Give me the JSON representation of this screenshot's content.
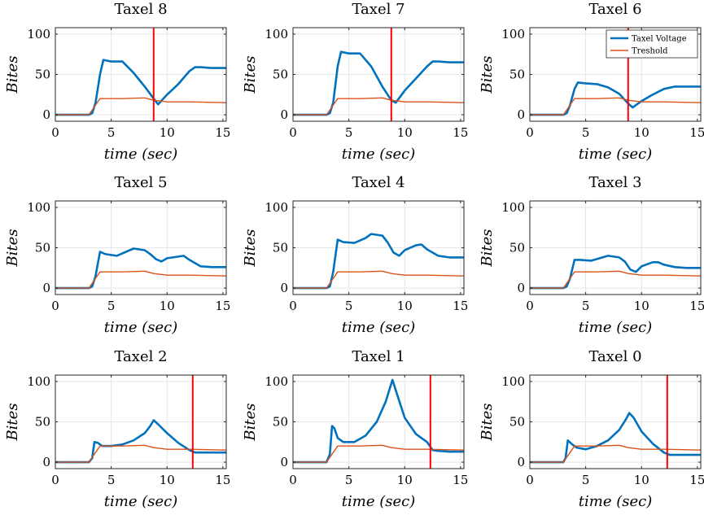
{
  "colors": {
    "voltage": "#0072bd",
    "threshold": "#d95319",
    "event": "#ff0000",
    "grid": "#e6e6e6",
    "axis": "#262626"
  },
  "chart_data": [
    {
      "type": "line",
      "title": "Taxel 8",
      "xlabel": "time (sec)",
      "ylabel": "Bites",
      "xlim": [
        0,
        15.3
      ],
      "ylim": [
        -8,
        108
      ],
      "xticks": [
        0,
        5,
        10,
        15
      ],
      "yticks": [
        0,
        50,
        100
      ],
      "grid": true,
      "event_x": 8.8,
      "legend": null,
      "series": [
        {
          "name": "Taxel Voltage",
          "x": [
            0,
            3.0,
            3.3,
            3.6,
            4.0,
            4.3,
            5.0,
            6.0,
            7.0,
            8.0,
            8.8,
            9.2,
            10.0,
            11.0,
            12.0,
            12.5,
            13.0,
            14.0,
            15.3
          ],
          "y": [
            0,
            0,
            2,
            15,
            50,
            68,
            66,
            66,
            52,
            35,
            20,
            13,
            25,
            38,
            54,
            59,
            59,
            58,
            58
          ]
        },
        {
          "name": "Treshold",
          "x": [
            0,
            3.0,
            3.5,
            4.0,
            6.0,
            8.0,
            8.8,
            10.0,
            12.0,
            15.3
          ],
          "y": [
            0,
            0,
            10,
            20,
            20,
            21,
            18,
            16,
            16,
            15
          ]
        }
      ]
    },
    {
      "type": "line",
      "title": "Taxel 7",
      "xlabel": "time (sec)",
      "ylabel": "Bites",
      "xlim": [
        0,
        15.3
      ],
      "ylim": [
        -8,
        108
      ],
      "xticks": [
        0,
        5,
        10,
        15
      ],
      "yticks": [
        0,
        50,
        100
      ],
      "grid": true,
      "event_x": 8.8,
      "legend": null,
      "series": [
        {
          "name": "Taxel Voltage",
          "x": [
            0,
            3.0,
            3.3,
            3.6,
            4.0,
            4.3,
            5.0,
            6.0,
            7.0,
            8.0,
            8.8,
            9.2,
            10.0,
            11.0,
            12.0,
            12.5,
            13.0,
            14.0,
            15.3
          ],
          "y": [
            0,
            0,
            2,
            15,
            60,
            78,
            76,
            76,
            60,
            35,
            18,
            15,
            30,
            45,
            60,
            66,
            66,
            65,
            65
          ]
        },
        {
          "name": "Treshold",
          "x": [
            0,
            3.0,
            3.5,
            4.0,
            6.0,
            8.0,
            8.8,
            10.0,
            12.0,
            15.3
          ],
          "y": [
            0,
            0,
            10,
            20,
            20,
            21,
            18,
            16,
            16,
            15
          ]
        }
      ]
    },
    {
      "type": "line",
      "title": "Taxel 6",
      "xlabel": "time (sec)",
      "ylabel": "Bites",
      "xlim": [
        0,
        15.3
      ],
      "ylim": [
        -8,
        108
      ],
      "xticks": [
        0,
        5,
        10,
        15
      ],
      "yticks": [
        0,
        50,
        100
      ],
      "grid": true,
      "event_x": 8.8,
      "legend": {
        "entries": [
          "Taxel Voltage",
          "Treshold"
        ],
        "position": "top-right"
      },
      "series": [
        {
          "name": "Taxel Voltage",
          "x": [
            0,
            3.0,
            3.3,
            3.6,
            4.0,
            4.3,
            5.0,
            6.0,
            7.0,
            8.0,
            8.8,
            9.2,
            10.0,
            11.0,
            12.0,
            13.0,
            14.0,
            15.3
          ],
          "y": [
            0,
            0,
            2,
            12,
            32,
            40,
            39,
            38,
            34,
            26,
            14,
            9,
            17,
            25,
            32,
            35,
            35,
            35
          ]
        },
        {
          "name": "Treshold",
          "x": [
            0,
            3.0,
            3.5,
            4.0,
            6.0,
            8.0,
            8.8,
            10.0,
            12.0,
            15.3
          ],
          "y": [
            0,
            0,
            10,
            20,
            20,
            21,
            18,
            16,
            16,
            15
          ]
        }
      ]
    },
    {
      "type": "line",
      "title": "Taxel 5",
      "xlabel": "time (sec)",
      "ylabel": "Bites",
      "xlim": [
        0,
        15.3
      ],
      "ylim": [
        -8,
        108
      ],
      "xticks": [
        0,
        5,
        10,
        15
      ],
      "yticks": [
        0,
        50,
        100
      ],
      "grid": true,
      "event_x": null,
      "legend": null,
      "series": [
        {
          "name": "Taxel Voltage",
          "x": [
            0,
            3.0,
            3.3,
            3.6,
            4.0,
            4.5,
            5.5,
            6.5,
            7.0,
            8.0,
            8.5,
            9.0,
            9.5,
            10.0,
            11.0,
            11.5,
            12.0,
            13.0,
            14.0,
            15.3
          ],
          "y": [
            0,
            0,
            2,
            15,
            45,
            42,
            40,
            46,
            49,
            47,
            42,
            36,
            33,
            37,
            39,
            40,
            35,
            27,
            26,
            26
          ]
        },
        {
          "name": "Treshold",
          "x": [
            0,
            3.0,
            3.5,
            4.0,
            6.0,
            8.0,
            8.8,
            10.0,
            12.0,
            15.3
          ],
          "y": [
            0,
            0,
            10,
            20,
            20,
            21,
            18,
            16,
            16,
            15
          ]
        }
      ]
    },
    {
      "type": "line",
      "title": "Taxel 4",
      "xlabel": "time (sec)",
      "ylabel": "Bites",
      "xlim": [
        0,
        15.3
      ],
      "ylim": [
        -8,
        108
      ],
      "xticks": [
        0,
        5,
        10,
        15
      ],
      "yticks": [
        0,
        50,
        100
      ],
      "grid": true,
      "event_x": null,
      "legend": null,
      "series": [
        {
          "name": "Taxel Voltage",
          "x": [
            0,
            3.0,
            3.3,
            3.6,
            4.0,
            4.5,
            5.5,
            6.5,
            7.0,
            8.0,
            8.5,
            9.0,
            9.5,
            10.0,
            11.0,
            11.5,
            12.0,
            13.0,
            14.0,
            15.3
          ],
          "y": [
            0,
            0,
            2,
            20,
            60,
            57,
            56,
            62,
            67,
            65,
            56,
            44,
            40,
            47,
            53,
            54,
            48,
            40,
            38,
            38
          ]
        },
        {
          "name": "Treshold",
          "x": [
            0,
            3.0,
            3.5,
            4.0,
            6.0,
            8.0,
            8.8,
            10.0,
            12.0,
            15.3
          ],
          "y": [
            0,
            0,
            10,
            20,
            20,
            21,
            18,
            16,
            16,
            15
          ]
        }
      ]
    },
    {
      "type": "line",
      "title": "Taxel 3",
      "xlabel": "time (sec)",
      "ylabel": "Bites",
      "xlim": [
        0,
        15.3
      ],
      "ylim": [
        -8,
        108
      ],
      "xticks": [
        0,
        5,
        10,
        15
      ],
      "yticks": [
        0,
        50,
        100
      ],
      "grid": true,
      "event_x": null,
      "legend": null,
      "series": [
        {
          "name": "Taxel Voltage",
          "x": [
            0,
            3.0,
            3.3,
            3.6,
            4.0,
            4.5,
            5.5,
            6.5,
            7.0,
            8.0,
            8.5,
            9.0,
            9.5,
            10.0,
            11.0,
            11.5,
            12.0,
            13.0,
            14.0,
            15.3
          ],
          "y": [
            0,
            0,
            2,
            12,
            35,
            35,
            34,
            38,
            40,
            38,
            33,
            23,
            20,
            27,
            32,
            32,
            29,
            26,
            25,
            25
          ]
        },
        {
          "name": "Treshold",
          "x": [
            0,
            3.0,
            3.5,
            4.0,
            6.0,
            8.0,
            8.8,
            10.0,
            12.0,
            15.3
          ],
          "y": [
            0,
            0,
            10,
            20,
            20,
            21,
            18,
            16,
            16,
            15
          ]
        }
      ]
    },
    {
      "type": "line",
      "title": "Taxel 2",
      "xlabel": "time (sec)",
      "ylabel": "Bites",
      "xlim": [
        0,
        15.3
      ],
      "ylim": [
        -8,
        108
      ],
      "xticks": [
        0,
        5,
        10,
        15
      ],
      "yticks": [
        0,
        50,
        100
      ],
      "grid": true,
      "event_x": 12.3,
      "legend": null,
      "series": [
        {
          "name": "Taxel Voltage",
          "x": [
            0,
            3.0,
            3.3,
            3.5,
            3.8,
            4.2,
            5.0,
            6.0,
            7.0,
            8.0,
            8.5,
            8.8,
            9.2,
            10.0,
            11.0,
            12.0,
            12.5,
            13.0,
            14.0,
            15.3
          ],
          "y": [
            0,
            0,
            5,
            25,
            24,
            20,
            20,
            22,
            27,
            36,
            45,
            52,
            47,
            36,
            24,
            15,
            12,
            12,
            12,
            12
          ]
        },
        {
          "name": "Treshold",
          "x": [
            0,
            3.0,
            3.5,
            4.0,
            6.0,
            8.0,
            8.8,
            10.0,
            12.0,
            15.3
          ],
          "y": [
            0,
            0,
            10,
            20,
            20,
            21,
            18,
            16,
            16,
            15
          ]
        }
      ]
    },
    {
      "type": "line",
      "title": "Taxel 1",
      "xlabel": "time (sec)",
      "ylabel": "Bites",
      "xlim": [
        0,
        15.3
      ],
      "ylim": [
        -8,
        108
      ],
      "xticks": [
        0,
        5,
        10,
        15
      ],
      "yticks": [
        0,
        50,
        100
      ],
      "grid": true,
      "event_x": 12.3,
      "legend": null,
      "series": [
        {
          "name": "Taxel Voltage",
          "x": [
            0,
            3.0,
            3.3,
            3.5,
            3.7,
            4.0,
            4.5,
            5.5,
            6.5,
            7.5,
            8.3,
            8.9,
            9.3,
            10.0,
            11.0,
            12.0,
            12.5,
            13.0,
            14.0,
            15.3
          ],
          "y": [
            0,
            0,
            10,
            45,
            42,
            30,
            25,
            25,
            33,
            50,
            75,
            102,
            85,
            55,
            35,
            25,
            15,
            14,
            13,
            13
          ]
        },
        {
          "name": "Treshold",
          "x": [
            0,
            3.0,
            3.5,
            4.0,
            6.0,
            8.0,
            8.8,
            10.0,
            12.0,
            15.3
          ],
          "y": [
            0,
            0,
            10,
            20,
            20,
            21,
            18,
            16,
            16,
            15
          ]
        }
      ]
    },
    {
      "type": "line",
      "title": "Taxel 0",
      "xlabel": "time (sec)",
      "ylabel": "Bites",
      "xlim": [
        0,
        15.3
      ],
      "ylim": [
        -8,
        108
      ],
      "xticks": [
        0,
        5,
        10,
        15
      ],
      "yticks": [
        0,
        50,
        100
      ],
      "grid": true,
      "event_x": 12.3,
      "legend": null,
      "series": [
        {
          "name": "Taxel Voltage",
          "x": [
            0,
            3.0,
            3.2,
            3.4,
            3.8,
            4.2,
            5.0,
            6.0,
            7.0,
            8.0,
            8.6,
            8.9,
            9.3,
            10.0,
            11.0,
            12.0,
            12.5,
            13.0,
            14.0,
            15.3
          ],
          "y": [
            0,
            0,
            5,
            27,
            22,
            18,
            16,
            20,
            27,
            40,
            53,
            61,
            55,
            38,
            23,
            12,
            9,
            9,
            9,
            9
          ]
        },
        {
          "name": "Treshold",
          "x": [
            0,
            3.0,
            3.5,
            4.0,
            6.0,
            8.0,
            8.8,
            10.0,
            12.0,
            15.3
          ],
          "y": [
            0,
            0,
            10,
            20,
            20,
            21,
            18,
            16,
            16,
            15
          ]
        }
      ]
    }
  ]
}
